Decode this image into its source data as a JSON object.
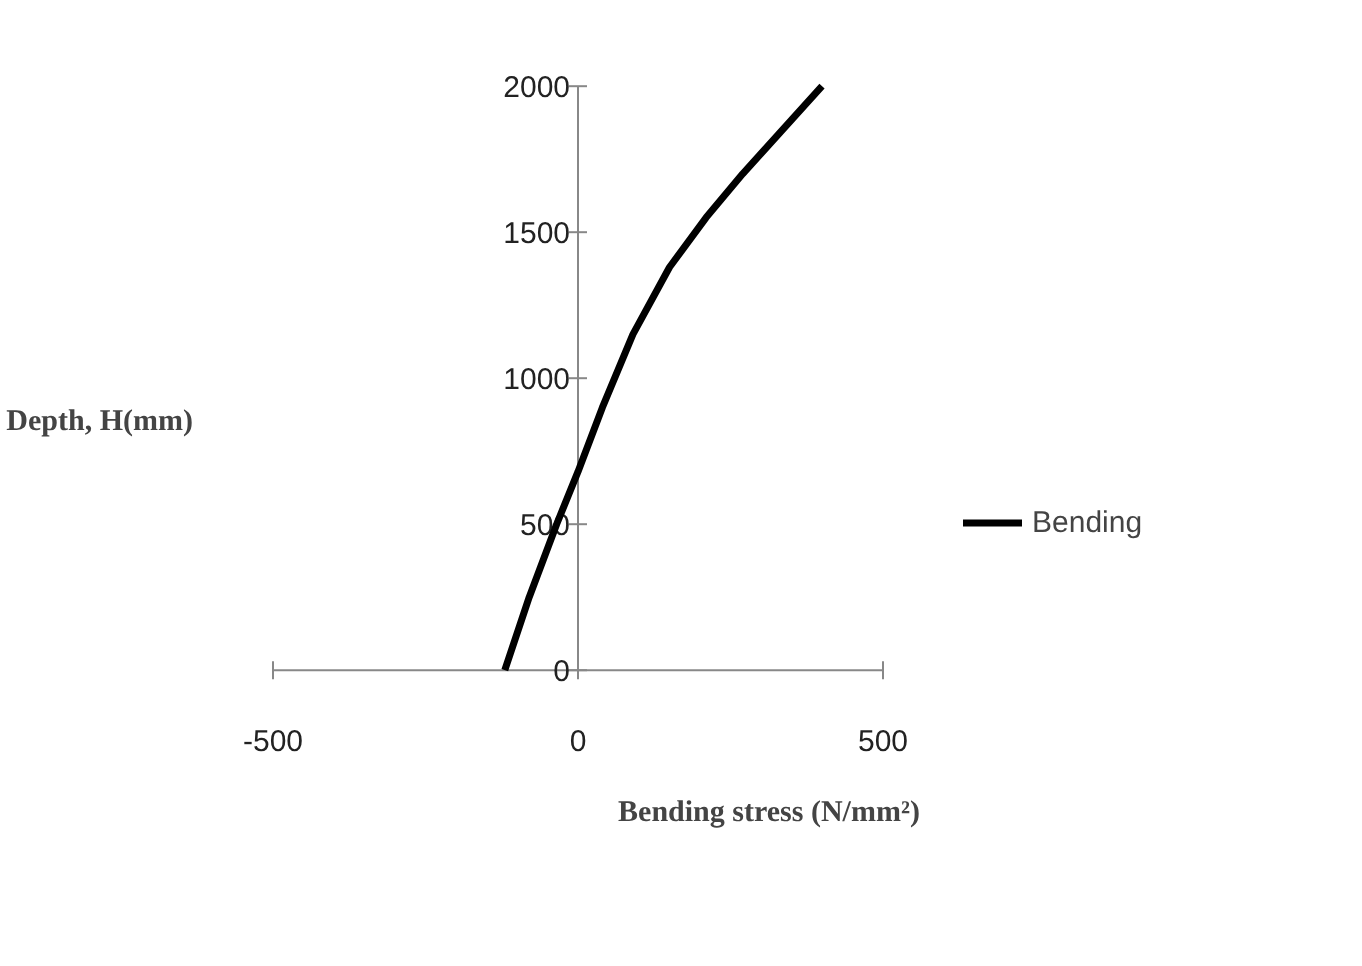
{
  "chart_data": {
    "type": "line",
    "xlabel": "Bending stress (N/mm²)",
    "ylabel": "Depth, H(mm)",
    "x": [
      -120,
      -80,
      -35,
      0,
      40,
      90,
      150,
      210,
      270,
      400
    ],
    "series": [
      {
        "name": "Bending",
        "color": "#000000",
        "values": [
          0,
          250,
          500,
          680,
          900,
          1150,
          1380,
          1550,
          1700,
          2000
        ]
      }
    ],
    "xlim": [
      -500,
      500
    ],
    "ylim": [
      0,
      2000
    ],
    "xticks": [
      -500,
      0,
      500
    ],
    "yticks": [
      0,
      500,
      1000,
      1500,
      2000
    ],
    "grid": false,
    "legend": "right",
    "marker": "none",
    "line_style": "solid"
  }
}
